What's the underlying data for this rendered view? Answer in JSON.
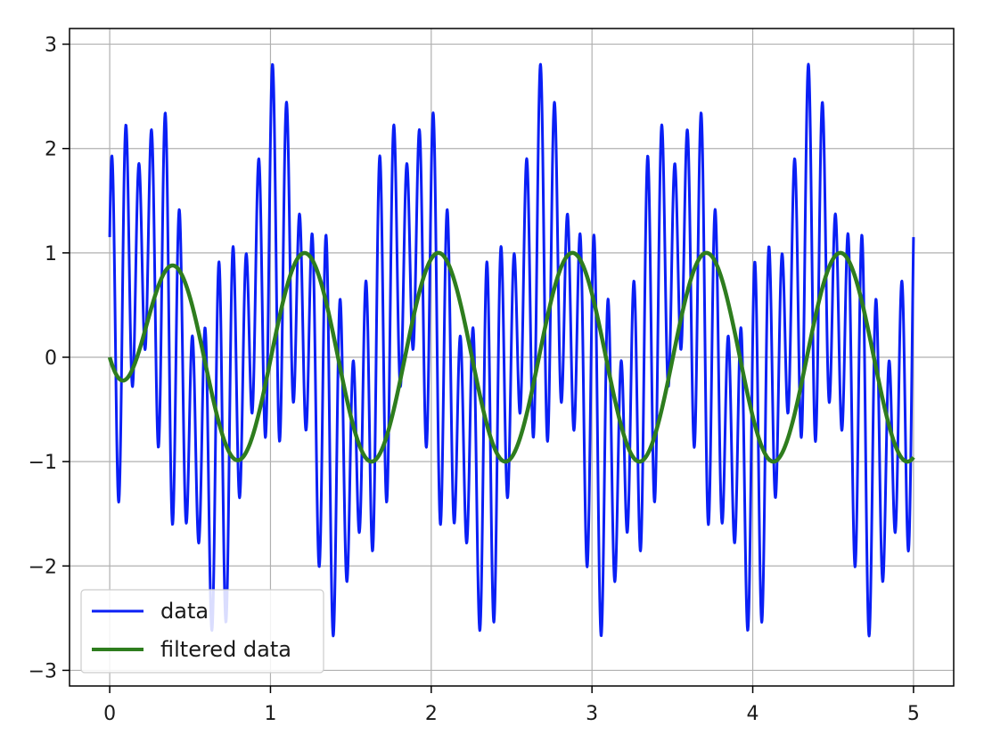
{
  "chart_data": {
    "type": "line",
    "title": "",
    "xlabel": "",
    "ylabel": "",
    "xlim": [
      -0.25,
      5.25
    ],
    "ylim": [
      -3.15,
      3.15
    ],
    "xticks": [
      0,
      1,
      2,
      3,
      4,
      5
    ],
    "yticks": [
      -3,
      -2,
      -1,
      0,
      1,
      2,
      3
    ],
    "xtick_labels": [
      "0",
      "1",
      "2",
      "3",
      "4",
      "5"
    ],
    "ytick_labels": [
      "−3",
      "−2",
      "−1",
      "0",
      "1",
      "2",
      "3"
    ],
    "grid": true,
    "legend_position": "lower-left",
    "x_range": [
      0,
      5
    ],
    "series": [
      {
        "name": "data",
        "color": "#0a1ff5",
        "description": "sum of sinusoids: 1.2 Hz, 9 Hz and 12 Hz components, amplitude ~2.8",
        "components": [
          {
            "freq_hz": 1.2,
            "amplitude": 1.0
          },
          {
            "freq_hz": 9.0,
            "amplitude": 0.5
          },
          {
            "freq_hz": 12.0,
            "amplitude": 1.35
          }
        ],
        "offset_at_zero": 1.55
      },
      {
        "name": "filtered data",
        "color": "#2e7d1e",
        "description": "low-pass filtered sinusoid, 1.2 Hz, amplitude 1 with short transient",
        "freq_hz": 1.2,
        "amplitude": 1.0
      }
    ]
  }
}
